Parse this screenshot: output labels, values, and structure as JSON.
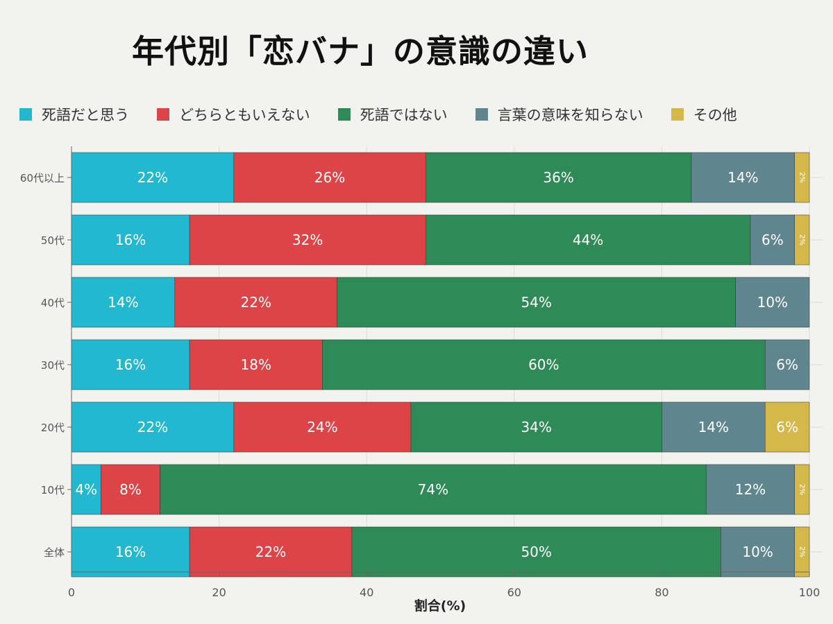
{
  "chart_data": {
    "type": "bar",
    "orientation": "horizontal",
    "stacked": true,
    "title": "年代別「恋バナ」の意識の違い",
    "xlabel": "割合(%)",
    "ylabel": "",
    "xlim": [
      0,
      100
    ],
    "xticks": [
      "0",
      "20",
      "40",
      "60",
      "80",
      "100"
    ],
    "grid": true,
    "legend_position": "top",
    "categories": [
      "60代以上",
      "50代",
      "40代",
      "30代",
      "20代",
      "10代",
      "全体"
    ],
    "series": [
      {
        "name": "死語だと思う",
        "color": "#22b8cf",
        "values": [
          22,
          16,
          14,
          16,
          22,
          4,
          16
        ],
        "labels": [
          "22%",
          "16%",
          "14%",
          "16%",
          "22%",
          "4%",
          "16%"
        ]
      },
      {
        "name": "どちらともいえない",
        "color": "#dc4447",
        "values": [
          26,
          32,
          22,
          18,
          24,
          8,
          22
        ],
        "labels": [
          "26%",
          "32%",
          "22%",
          "18%",
          "24%",
          "8%",
          "22%"
        ]
      },
      {
        "name": "死語ではない",
        "color": "#2e8b57",
        "values": [
          36,
          44,
          54,
          60,
          34,
          74,
          50
        ],
        "labels": [
          "36%",
          "44%",
          "54%",
          "60%",
          "34%",
          "74%",
          "50%"
        ]
      },
      {
        "name": "言葉の意味を知らない",
        "color": "#5f868e",
        "values": [
          14,
          6,
          10,
          6,
          14,
          12,
          10
        ],
        "labels": [
          "14%",
          "6%",
          "10%",
          "6%",
          "14%",
          "12%",
          "10%"
        ]
      },
      {
        "name": "その他",
        "color": "#d4b84a",
        "values": [
          2,
          2,
          0,
          0,
          6,
          2,
          2
        ],
        "labels": [
          "2%",
          "2%",
          "",
          "",
          "6%",
          "2%",
          "2%"
        ]
      }
    ]
  }
}
